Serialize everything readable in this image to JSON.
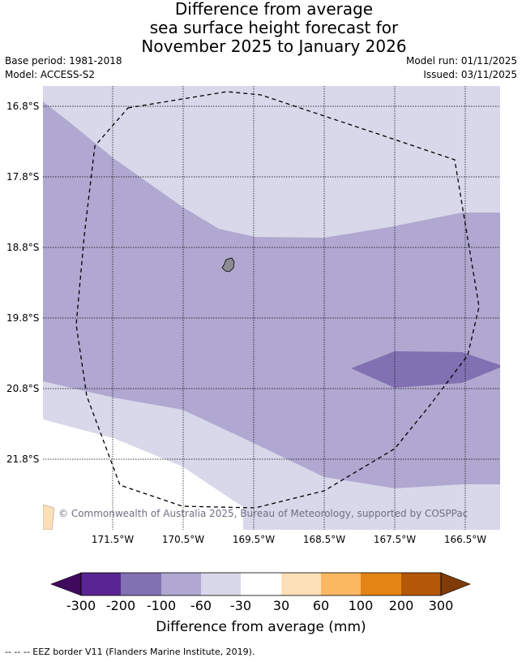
{
  "title": {
    "line1": "Difference from average",
    "line2": "sea surface height forecast for",
    "line3": "November 2025 to January 2026"
  },
  "meta": {
    "base_period": "Base period: 1981-2018",
    "model": "Model: ACCESS-S2",
    "model_run": "Model run: 01/11/2025",
    "issued": "Issued: 03/11/2025"
  },
  "map": {
    "latitude_labels": [
      "16.8°S",
      "17.8°S",
      "18.8°S",
      "19.8°S",
      "20.8°S",
      "21.8°S"
    ],
    "longitude_labels": [
      "171.5°W",
      "170.5°W",
      "169.5°W",
      "168.5°W",
      "167.5°W",
      "166.5°W"
    ],
    "copyright": "© Commonwealth of Australia 2025, Bureau of Meteorology, supported by COSPPac"
  },
  "colorbar": {
    "ticks": [
      "-300",
      "-200",
      "-100",
      "-60",
      "-30",
      "30",
      "60",
      "100",
      "200",
      "300"
    ],
    "colors": [
      "#3f0a5e",
      "#5a2592",
      "#8171b2",
      "#b0a8d0",
      "#d8d8ea",
      "#ffffff",
      "#fde0b8",
      "#fcb861",
      "#e38414",
      "#b35806",
      "#7f3b08"
    ],
    "label": "Difference from average (mm)"
  },
  "footnote": "-- -- -- EEZ border V11 (Flanders Marine Institute, 2019)."
}
